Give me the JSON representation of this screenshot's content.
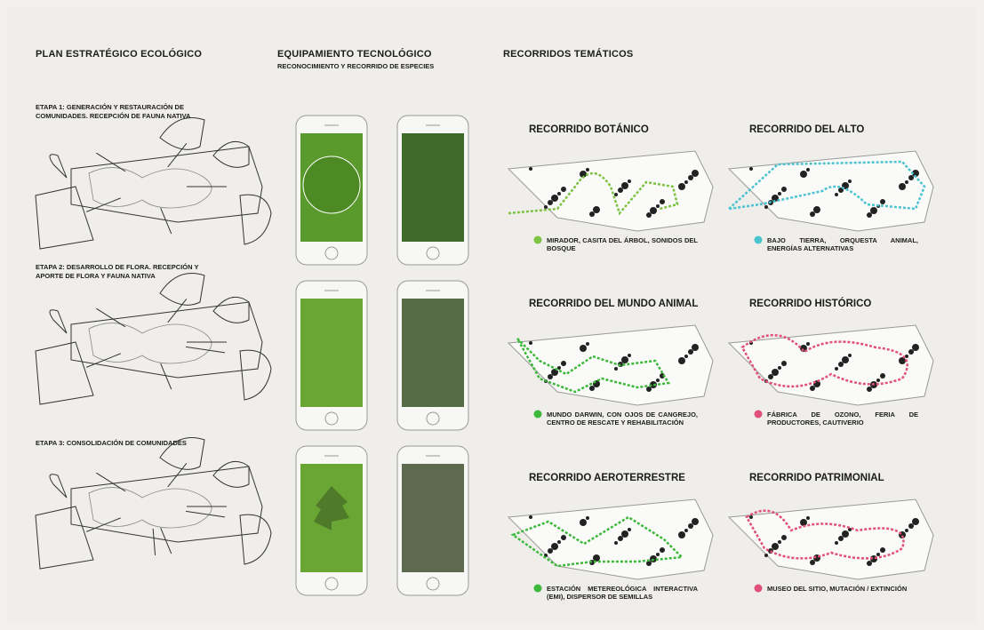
{
  "plan": {
    "title": "PLAN ESTRATÉGICO ECOLÓGICO",
    "stages": [
      "ETAPA 1: GENERACIÓN Y RESTAURACIÓN DE COMUNIDADES. RECEPCIÓN DE FAUNA NATIVA",
      "ETAPA 2: DESARROLLO DE FLORA. RECEPCIÓN Y APORTE DE FLORA Y FAUNA NATIVA",
      "ETAPA 3: CONSOLIDACIÓN DE COMUNIDADES"
    ]
  },
  "tech": {
    "title": "EQUIPAMIENTO TECNOLÓGICO",
    "subtitle": "RECONOCIMIENTO Y RECORRIDO DE ESPECIES"
  },
  "routes": {
    "title": "RECORRIDOS TEMÁTICOS",
    "items": [
      {
        "name": "RECORRIDO BOTÁNICO",
        "description": "MIRADOR, CASITA DEL ÁRBOL, SONIDOS DEL BOSQUE",
        "color": "#7dc242"
      },
      {
        "name": "RECORRIDO DEL ALTO",
        "description": "BAJO TIERRA, ORQUESTA ANIMAL, ENERGÍAS ALTERNATIVAS",
        "color": "#4cc3d0"
      },
      {
        "name": "RECORRIDO DEL MUNDO ANIMAL",
        "description": "MUNDO DARWIN, CON OJOS DE CANGREJO, CENTRO DE RESCATE Y REHABILITACIÓN",
        "color": "#3cb83a"
      },
      {
        "name": "RECORRIDO HISTÓRICO",
        "description": "FÁBRICA DE OZONO, FERIA DE PRODUCTORES, CAUTIVERIO",
        "color": "#e0507a"
      },
      {
        "name": "RECORRIDO AEROTERRESTRE",
        "description": "ESTACIÓN METEREOLÓGICA INTERACTIVA (EMI), DISPERSOR DE SEMILLAS",
        "color": "#3cb83a"
      },
      {
        "name": "RECORRIDO PATRIMONIAL",
        "description": "MUSEO DEL SITIO, MUTACIÓN / EXTINCIÓN",
        "color": "#e0507a"
      }
    ]
  }
}
